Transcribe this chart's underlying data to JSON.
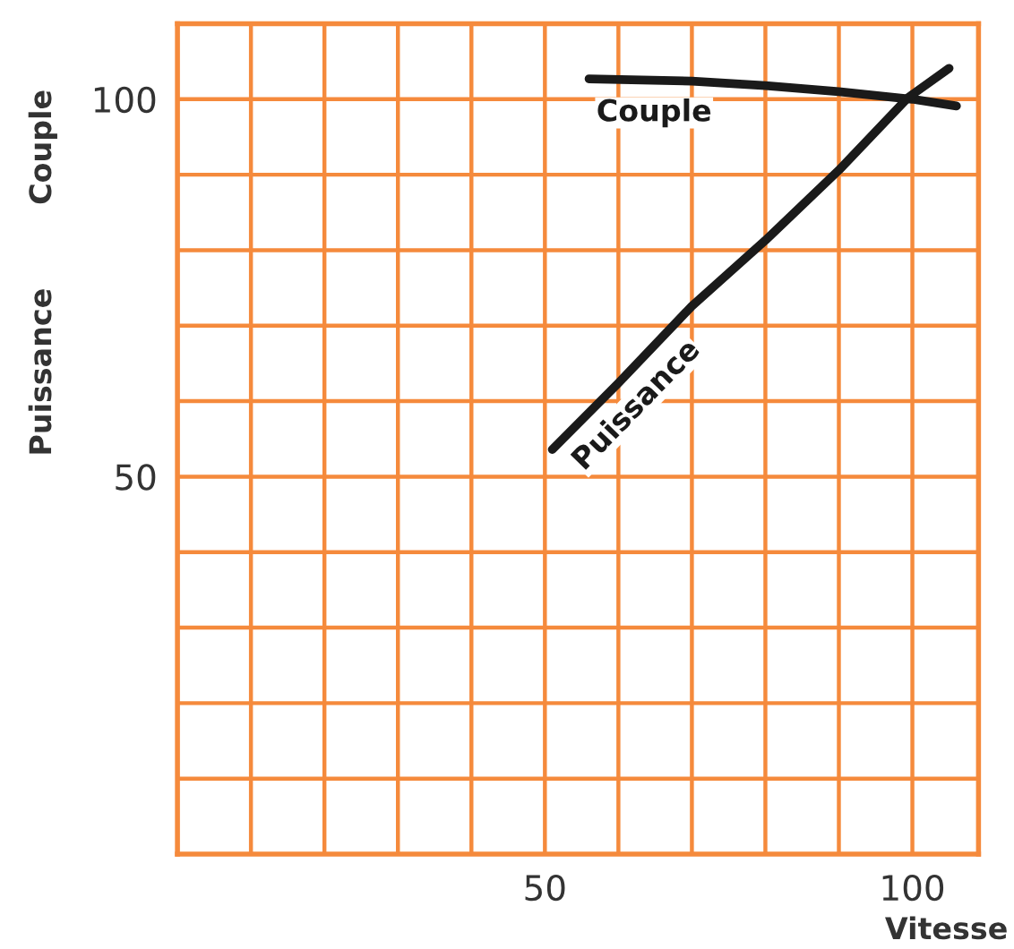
{
  "chart_data": {
    "type": "line",
    "xlabel": "Vitesse",
    "ylabel": "Puissance        Couple",
    "xlim": [
      0,
      109
    ],
    "ylim": [
      0,
      110
    ],
    "xticks": [
      {
        "value": 10,
        "label": null
      },
      {
        "value": 20,
        "label": null
      },
      {
        "value": 30,
        "label": null
      },
      {
        "value": 40,
        "label": null
      },
      50,
      {
        "value": 60,
        "label": null
      },
      {
        "value": 70,
        "label": null
      },
      {
        "value": 80,
        "label": null
      },
      {
        "value": 90,
        "label": null
      },
      100
    ],
    "yticks": [
      {
        "value": 10,
        "label": null
      },
      {
        "value": 20,
        "label": null
      },
      {
        "value": 30,
        "label": null
      },
      {
        "value": 40,
        "label": null
      },
      50,
      {
        "value": 60,
        "label": null
      },
      {
        "value": 70,
        "label": null
      },
      {
        "value": 80,
        "label": null
      },
      {
        "value": 90,
        "label": null
      },
      100
    ],
    "grid": true,
    "marker": "none",
    "line_style": "solid",
    "series": [
      {
        "name": "Couple",
        "color": "#1a1a1a",
        "x": [
          56,
          70,
          80,
          90,
          100,
          106
        ],
        "values": [
          102.7,
          102.4,
          101.8,
          101,
          100,
          99.1
        ]
      },
      {
        "name": "Puissance",
        "color": "#1a1a1a",
        "x": [
          51,
          60,
          70,
          80,
          90,
          99.4,
          105
        ],
        "values": [
          53.6,
          62.4,
          72.6,
          81.3,
          90.6,
          100.2,
          104.1
        ]
      }
    ]
  }
}
